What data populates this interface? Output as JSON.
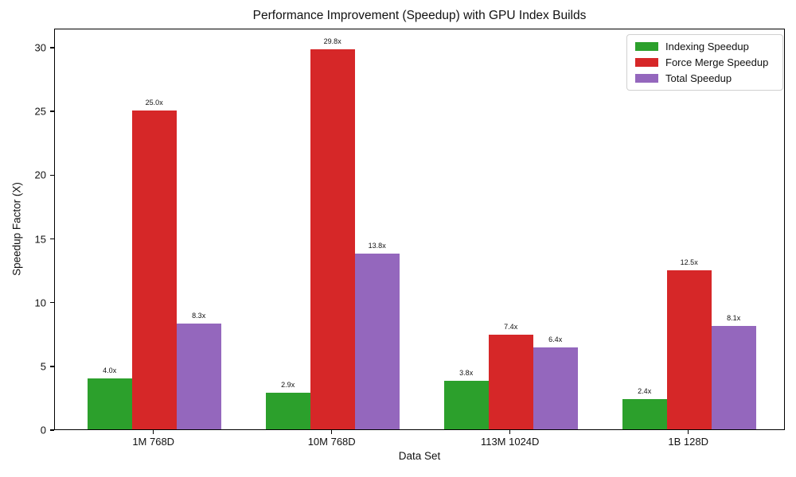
{
  "title": "Performance Improvement (Speedup) with GPU Index Builds",
  "chart_data": {
    "type": "bar",
    "title": "Performance Improvement (Speedup) with GPU Index Builds",
    "xlabel": "Data Set",
    "ylabel": "Speedup Factor (X)",
    "categories": [
      "1M 768D",
      "10M 768D",
      "113M 1024D",
      "1B 128D"
    ],
    "series": [
      {
        "name": "Indexing Speedup",
        "color": "#2ca02c",
        "values": [
          4.0,
          2.9,
          3.8,
          2.4
        ],
        "labels": [
          "4.0x",
          "2.9x",
          "3.8x",
          "2.4x"
        ]
      },
      {
        "name": "Force Merge Speedup",
        "color": "#d62728",
        "values": [
          25.0,
          29.8,
          7.4,
          12.5
        ],
        "labels": [
          "25.0x",
          "29.8x",
          "7.4x",
          "12.5x"
        ]
      },
      {
        "name": "Total Speedup",
        "color": "#9467bd",
        "values": [
          8.3,
          13.8,
          6.4,
          8.1
        ],
        "labels": [
          "8.3x",
          "13.8x",
          "6.4x",
          "8.1x"
        ]
      }
    ],
    "yticks": [
      0,
      5,
      10,
      15,
      20,
      25,
      30
    ],
    "ylim": [
      0,
      31.5
    ],
    "grid": false,
    "legend_position": "upper right",
    "background_color": "#ffffff",
    "spine_color": "#000000"
  }
}
